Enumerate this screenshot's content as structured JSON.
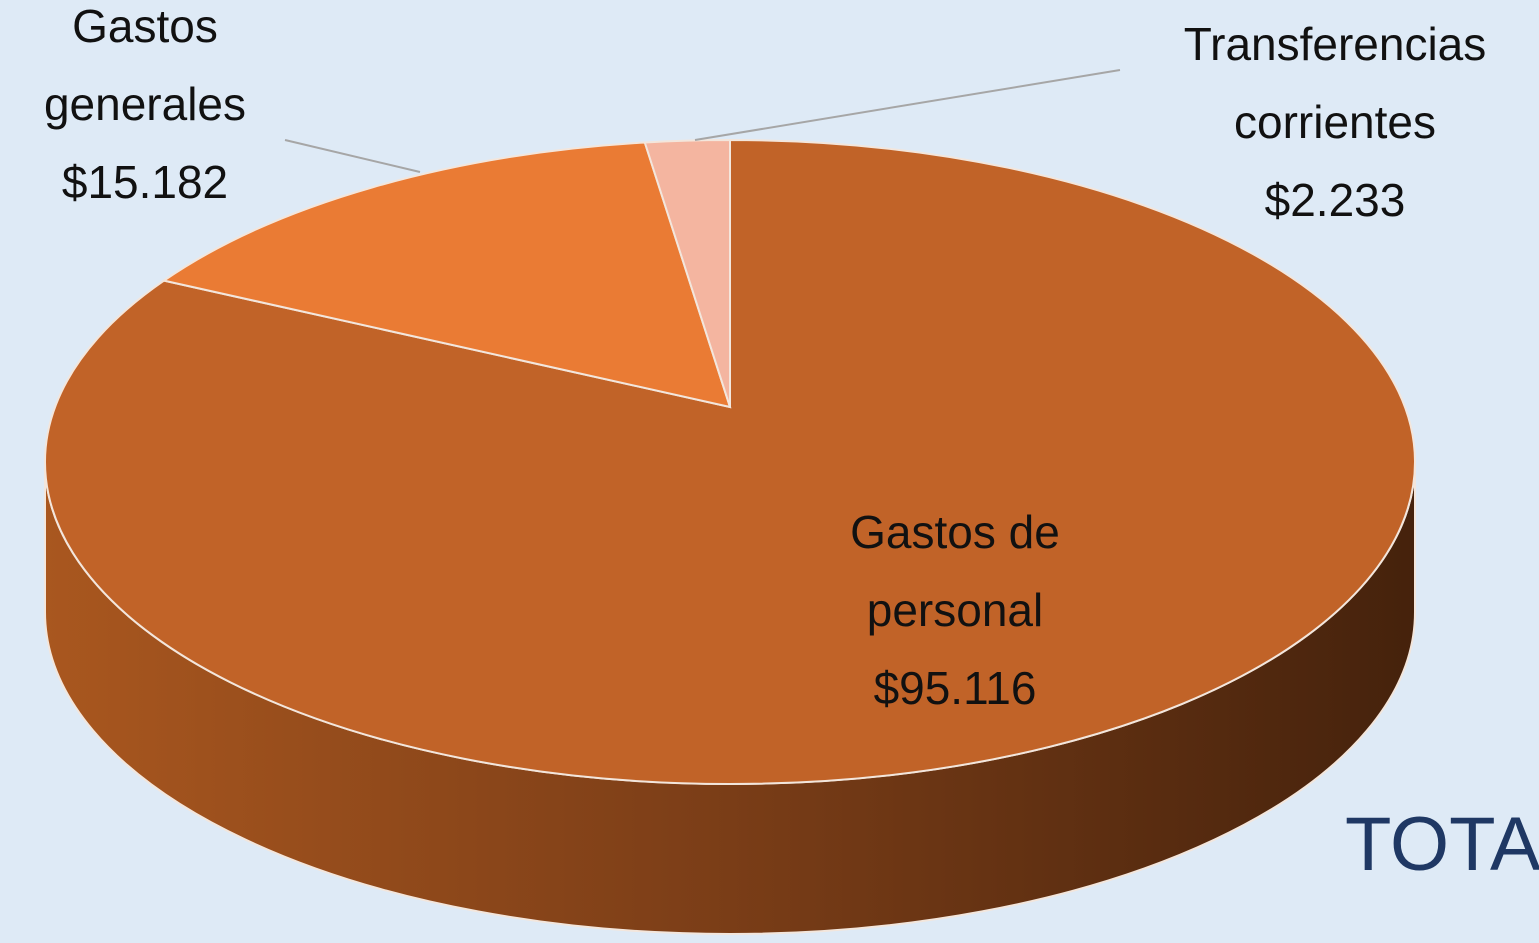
{
  "chart_data": {
    "type": "pie",
    "categories": [
      "Gastos de personal",
      "Gastos generales",
      "Transferencias corrientes"
    ],
    "values": [
      95116,
      15182,
      2233
    ],
    "value_labels": [
      "$95.116",
      "$15.182",
      "$2.233"
    ],
    "colors": [
      "#c16328",
      "#ea7b34",
      "#f4b5a0"
    ],
    "annotation": "TOTA"
  }
}
